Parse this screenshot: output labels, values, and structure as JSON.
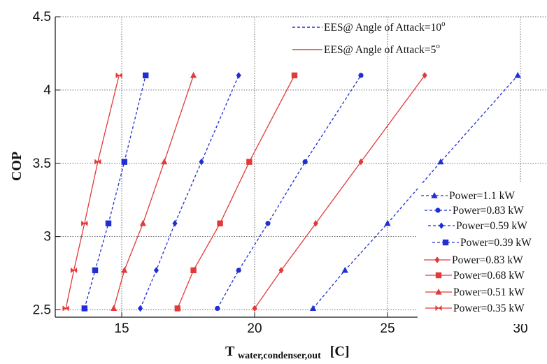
{
  "chart_data": {
    "type": "line",
    "title": "",
    "xlabel": "T",
    "xlabel_sub": "water,condenser,out",
    "xlabel_unit": "[C]",
    "ylabel": "COP",
    "xlim": [
      12.5,
      31.0
    ],
    "ylim": [
      2.45,
      4.5
    ],
    "xticks": [
      15,
      20,
      25,
      30
    ],
    "yticks": [
      2.5,
      3,
      3.5,
      4,
      4.5
    ],
    "xtick_labels": [
      "15",
      "20",
      "25",
      "30"
    ],
    "ytick_labels": [
      "2.5",
      "3",
      "3.5",
      "4",
      "4.5"
    ],
    "grid": true,
    "style_legend": {
      "placement": "top-right",
      "items": [
        {
          "name": "EES@ Angle of Attack=10",
          "superscript": "o",
          "color": "#1f2fd1",
          "dash": "dashed"
        },
        {
          "name": "EES@ Angle of Attack=5",
          "superscript": "o",
          "color": "#e23a3a",
          "dash": "solid"
        }
      ]
    },
    "series_legend": {
      "placement": "bottom-right"
    },
    "series": [
      {
        "name": "Power=1.1 kW",
        "color": "#1f2fd1",
        "dash": "dashed",
        "marker": "triangle",
        "x": [
          22.2,
          23.4,
          25.0,
          27.0,
          29.9
        ],
        "y": [
          2.51,
          2.77,
          3.09,
          3.51,
          4.1
        ]
      },
      {
        "name": "Power=0.83 kW",
        "color": "#1f2fd1",
        "dash": "dashed",
        "marker": "circle",
        "x": [
          18.6,
          19.4,
          20.5,
          21.9,
          24.0
        ],
        "y": [
          2.51,
          2.77,
          3.09,
          3.51,
          4.1
        ]
      },
      {
        "name": "Power=0.59 kW",
        "color": "#1f2fd1",
        "dash": "dashed",
        "marker": "diamond",
        "x": [
          15.7,
          16.3,
          17.0,
          18.0,
          19.4
        ],
        "y": [
          2.51,
          2.77,
          3.09,
          3.51,
          4.1
        ]
      },
      {
        "name": "Power=0.39 kW",
        "color": "#1f2fd1",
        "dash": "dashed",
        "marker": "square",
        "x": [
          13.6,
          14.0,
          14.5,
          15.1,
          15.9
        ],
        "y": [
          2.51,
          2.77,
          3.09,
          3.51,
          4.1
        ]
      },
      {
        "name": "Power=0.83 kW",
        "color": "#e23a3a",
        "dash": "solid",
        "marker": "diamond",
        "x": [
          20.0,
          21.0,
          22.3,
          24.0,
          26.4
        ],
        "y": [
          2.51,
          2.77,
          3.09,
          3.51,
          4.1
        ]
      },
      {
        "name": "Power=0.68 kW",
        "color": "#e23a3a",
        "dash": "solid",
        "marker": "square",
        "x": [
          17.1,
          17.7,
          18.7,
          19.8,
          21.5
        ],
        "y": [
          2.51,
          2.77,
          3.09,
          3.51,
          4.1
        ]
      },
      {
        "name": "Power=0.51 kW",
        "color": "#e23a3a",
        "dash": "solid",
        "marker": "triangle",
        "x": [
          14.7,
          15.1,
          15.8,
          16.6,
          17.7
        ],
        "y": [
          2.51,
          2.77,
          3.09,
          3.51,
          4.1
        ]
      },
      {
        "name": "Power=0.35 kW",
        "color": "#e23a3a",
        "dash": "solid",
        "marker": "bowtie",
        "x": [
          12.9,
          13.2,
          13.6,
          14.1,
          14.9
        ],
        "y": [
          2.51,
          2.77,
          3.09,
          3.51,
          4.1
        ]
      }
    ]
  }
}
